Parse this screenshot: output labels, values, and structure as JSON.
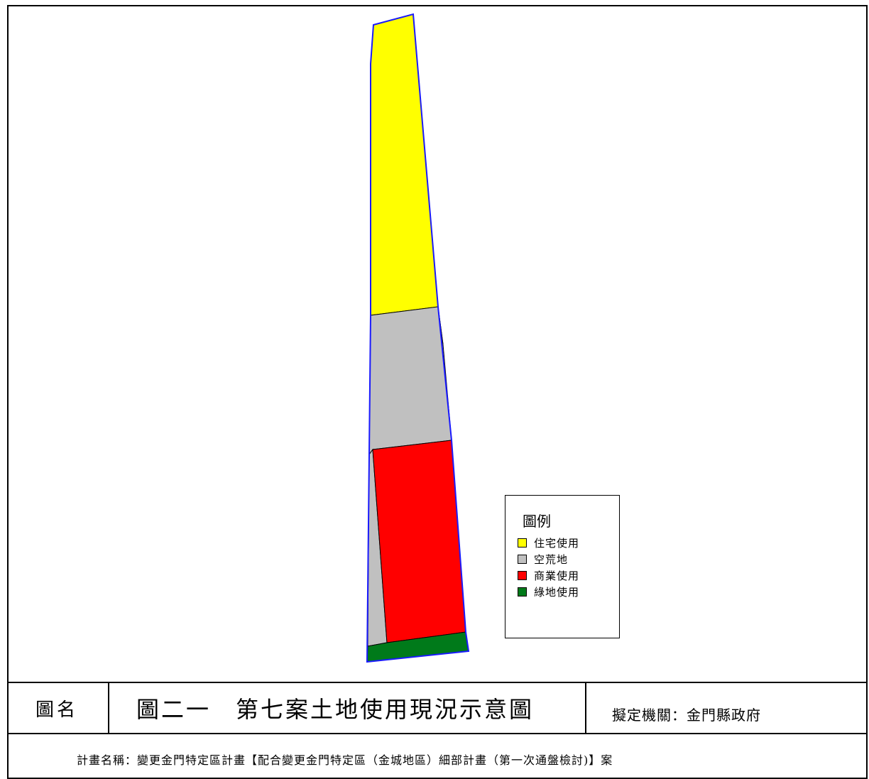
{
  "legend": {
    "title": "圖例",
    "items": [
      {
        "label": "住宅使用",
        "color": "#ffff00"
      },
      {
        "label": "空荒地",
        "color": "#c0c0c0"
      },
      {
        "label": "商業使用",
        "color": "#ff0000"
      },
      {
        "label": "綠地使用",
        "color": "#007a1a"
      }
    ]
  },
  "title_block": {
    "name_label": "圖名",
    "map_title": "圖二一　第七案土地使用現況示意圖",
    "agency": "擬定機關：金門縣政府",
    "plan_name": "計畫名稱：變更金門特定區計畫【配合變更金門特定區（金城地區）細部計畫（第一次通盤檢討)】案"
  },
  "colors": {
    "boundary": "#1a1aff",
    "residential": "#ffff00",
    "vacant": "#c0c0c0",
    "commercial": "#ff0000",
    "green": "#007a1a"
  }
}
